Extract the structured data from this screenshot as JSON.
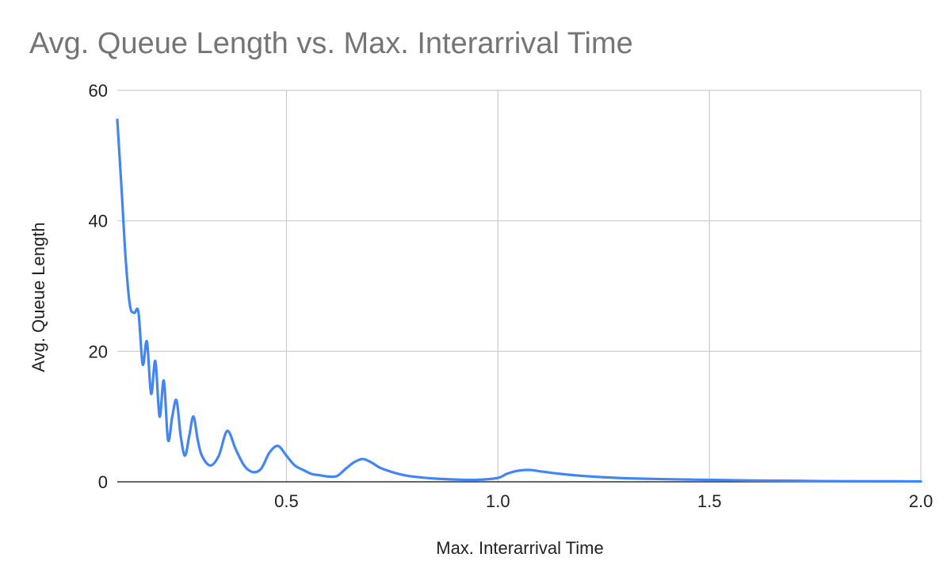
{
  "chart_data": {
    "type": "line",
    "title": "Avg. Queue Length vs. Max. Interarrival Time",
    "xlabel": "Max. Interarrival Time",
    "ylabel": "Avg. Queue Length",
    "xlim": [
      0.1,
      2.0
    ],
    "ylim": [
      0,
      60
    ],
    "xticks": [
      "0.5",
      "1.0",
      "1.5",
      "2.0"
    ],
    "yticks": [
      "0",
      "20",
      "40",
      "60"
    ],
    "grid": true,
    "legend": "none",
    "series": [
      {
        "color": "#4285f4",
        "x": [
          0.1,
          0.11,
          0.12,
          0.13,
          0.14,
          0.15,
          0.16,
          0.17,
          0.18,
          0.19,
          0.2,
          0.21,
          0.22,
          0.23,
          0.24,
          0.25,
          0.26,
          0.27,
          0.28,
          0.29,
          0.3,
          0.32,
          0.34,
          0.36,
          0.38,
          0.4,
          0.42,
          0.44,
          0.46,
          0.48,
          0.5,
          0.52,
          0.54,
          0.56,
          0.58,
          0.6,
          0.62,
          0.64,
          0.66,
          0.68,
          0.7,
          0.72,
          0.74,
          0.76,
          0.78,
          0.8,
          0.85,
          0.9,
          0.95,
          1.0,
          1.02,
          1.04,
          1.06,
          1.08,
          1.1,
          1.15,
          1.2,
          1.25,
          1.3,
          1.4,
          1.5,
          1.6,
          1.7,
          1.8,
          1.9,
          2.0
        ],
        "y": [
          55.5,
          45,
          34,
          27,
          25.9,
          26,
          18,
          21.5,
          13.5,
          18.5,
          10,
          15.5,
          6.4,
          10,
          12.5,
          7,
          4,
          7,
          10,
          6.5,
          4,
          2.5,
          4,
          7.8,
          5,
          2.5,
          1.5,
          2,
          4.5,
          5.5,
          4,
          2.5,
          1.8,
          1.2,
          1,
          0.8,
          0.9,
          2,
          3,
          3.5,
          3,
          2.2,
          1.7,
          1.3,
          1,
          0.8,
          0.5,
          0.35,
          0.3,
          0.6,
          1.2,
          1.6,
          1.8,
          1.8,
          1.6,
          1.2,
          0.9,
          0.7,
          0.55,
          0.4,
          0.3,
          0.2,
          0.15,
          0.1,
          0.08,
          0.06
        ]
      }
    ]
  }
}
